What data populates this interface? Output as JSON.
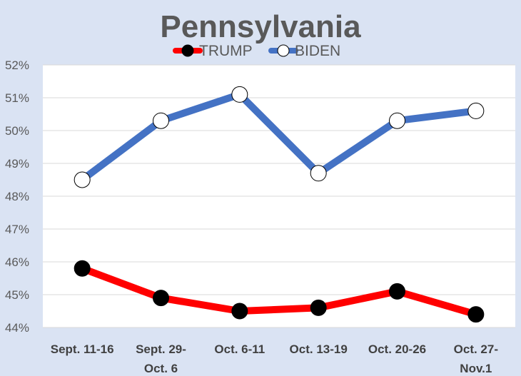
{
  "chart_data": {
    "type": "line",
    "title": "Pennsylvania",
    "categories": [
      [
        "Sept. 11-16"
      ],
      [
        "Sept. 29-",
        "Oct. 6"
      ],
      [
        "Oct. 6-11"
      ],
      [
        "Oct. 13-19"
      ],
      [
        "Oct. 20-26"
      ],
      [
        "Oct. 27-",
        "Nov.1"
      ]
    ],
    "ylim": [
      44,
      52
    ],
    "yticks": [
      44,
      45,
      46,
      47,
      48,
      49,
      50,
      51,
      52
    ],
    "ytick_labels": [
      "44%",
      "45%",
      "46%",
      "47%",
      "48%",
      "49%",
      "50%",
      "51%",
      "52%"
    ],
    "grid": true,
    "legend": "top",
    "series": [
      {
        "name": "TRUMP",
        "color": "#ff0000",
        "marker_fill": "#000000",
        "values": [
          45.8,
          44.9,
          44.5,
          44.6,
          45.1,
          44.4
        ]
      },
      {
        "name": "BIDEN",
        "color": "#4472c4",
        "marker_fill": "#ffffff",
        "values": [
          48.5,
          50.3,
          51.1,
          48.7,
          50.3,
          50.6
        ]
      }
    ]
  }
}
